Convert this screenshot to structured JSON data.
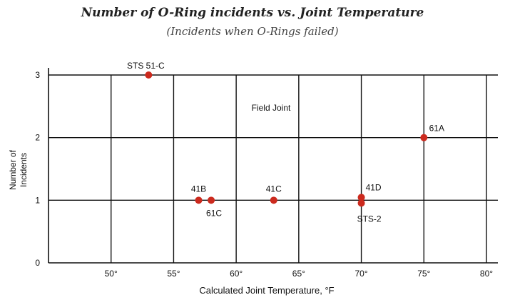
{
  "chart_data": {
    "type": "scatter",
    "title": "Number of O-Ring incidents vs. Joint Temperature",
    "subtitle": "(Incidents when O-Rings failed)",
    "xlabel": "Calculated Joint Temperature, °F",
    "ylabel": "Number of Incidents",
    "ylabel_lines": [
      "Number of",
      "Incidents"
    ],
    "annotation": "Field Joint",
    "xlim": [
      45,
      80
    ],
    "ylim": [
      0,
      3
    ],
    "x_ticks": [
      50,
      55,
      60,
      65,
      70,
      75,
      80
    ],
    "x_tick_labels": [
      "50°",
      "55°",
      "60°",
      "65°",
      "70°",
      "75°",
      "80°"
    ],
    "y_ticks": [
      0,
      1,
      2,
      3
    ],
    "y_tick_labels": [
      "0",
      "1",
      "2",
      "3"
    ],
    "grid": true,
    "point_color": "#cc2a1e",
    "points": [
      {
        "label": "STS 51-C",
        "x": 53,
        "y": 3
      },
      {
        "label": "61A",
        "x": 75,
        "y": 2
      },
      {
        "label": "41B",
        "x": 57,
        "y": 1
      },
      {
        "label": "61C",
        "x": 58,
        "y": 1
      },
      {
        "label": "41C",
        "x": 63,
        "y": 1
      },
      {
        "label": "41D",
        "x": 70,
        "y": 1
      },
      {
        "label": "STS-2",
        "x": 70,
        "y": 1
      }
    ]
  }
}
